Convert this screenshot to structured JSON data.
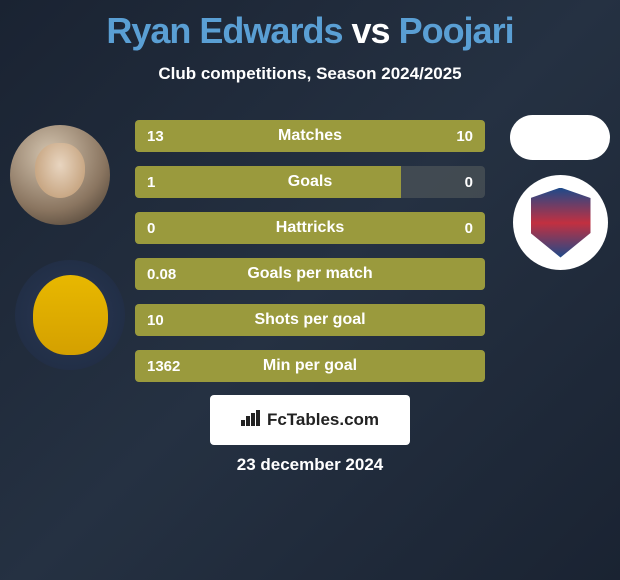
{
  "header": {
    "player1": "Ryan Edwards",
    "vs": "vs",
    "player2": "Poojari",
    "subtitle": "Club competitions, Season 2024/2025"
  },
  "stats": [
    {
      "label": "Matches",
      "left_val": "13",
      "right_val": "10",
      "left_pct": 57,
      "right_pct": 43,
      "full": true
    },
    {
      "label": "Goals",
      "left_val": "1",
      "right_val": "0",
      "left_pct": 76,
      "right_pct": 0,
      "full": false
    },
    {
      "label": "Hattricks",
      "left_val": "0",
      "right_val": "0",
      "left_pct": 100,
      "right_pct": 0,
      "full": true
    },
    {
      "label": "Goals per match",
      "left_val": "0.08",
      "right_val": "",
      "left_pct": 100,
      "right_pct": 0,
      "full": true
    },
    {
      "label": "Shots per goal",
      "left_val": "10",
      "right_val": "",
      "left_pct": 100,
      "right_pct": 0,
      "full": true
    },
    {
      "label": "Min per goal",
      "left_val": "1362",
      "right_val": "",
      "left_pct": 100,
      "right_pct": 0,
      "full": true
    }
  ],
  "colors": {
    "bar_fill": "#9a9a3d",
    "bar_bg": "rgba(150,150,130,0.25)",
    "title_color": "#5a9fd4",
    "text_color": "#ffffff"
  },
  "watermark": {
    "text": "FcTables.com"
  },
  "date": "23 december 2024"
}
